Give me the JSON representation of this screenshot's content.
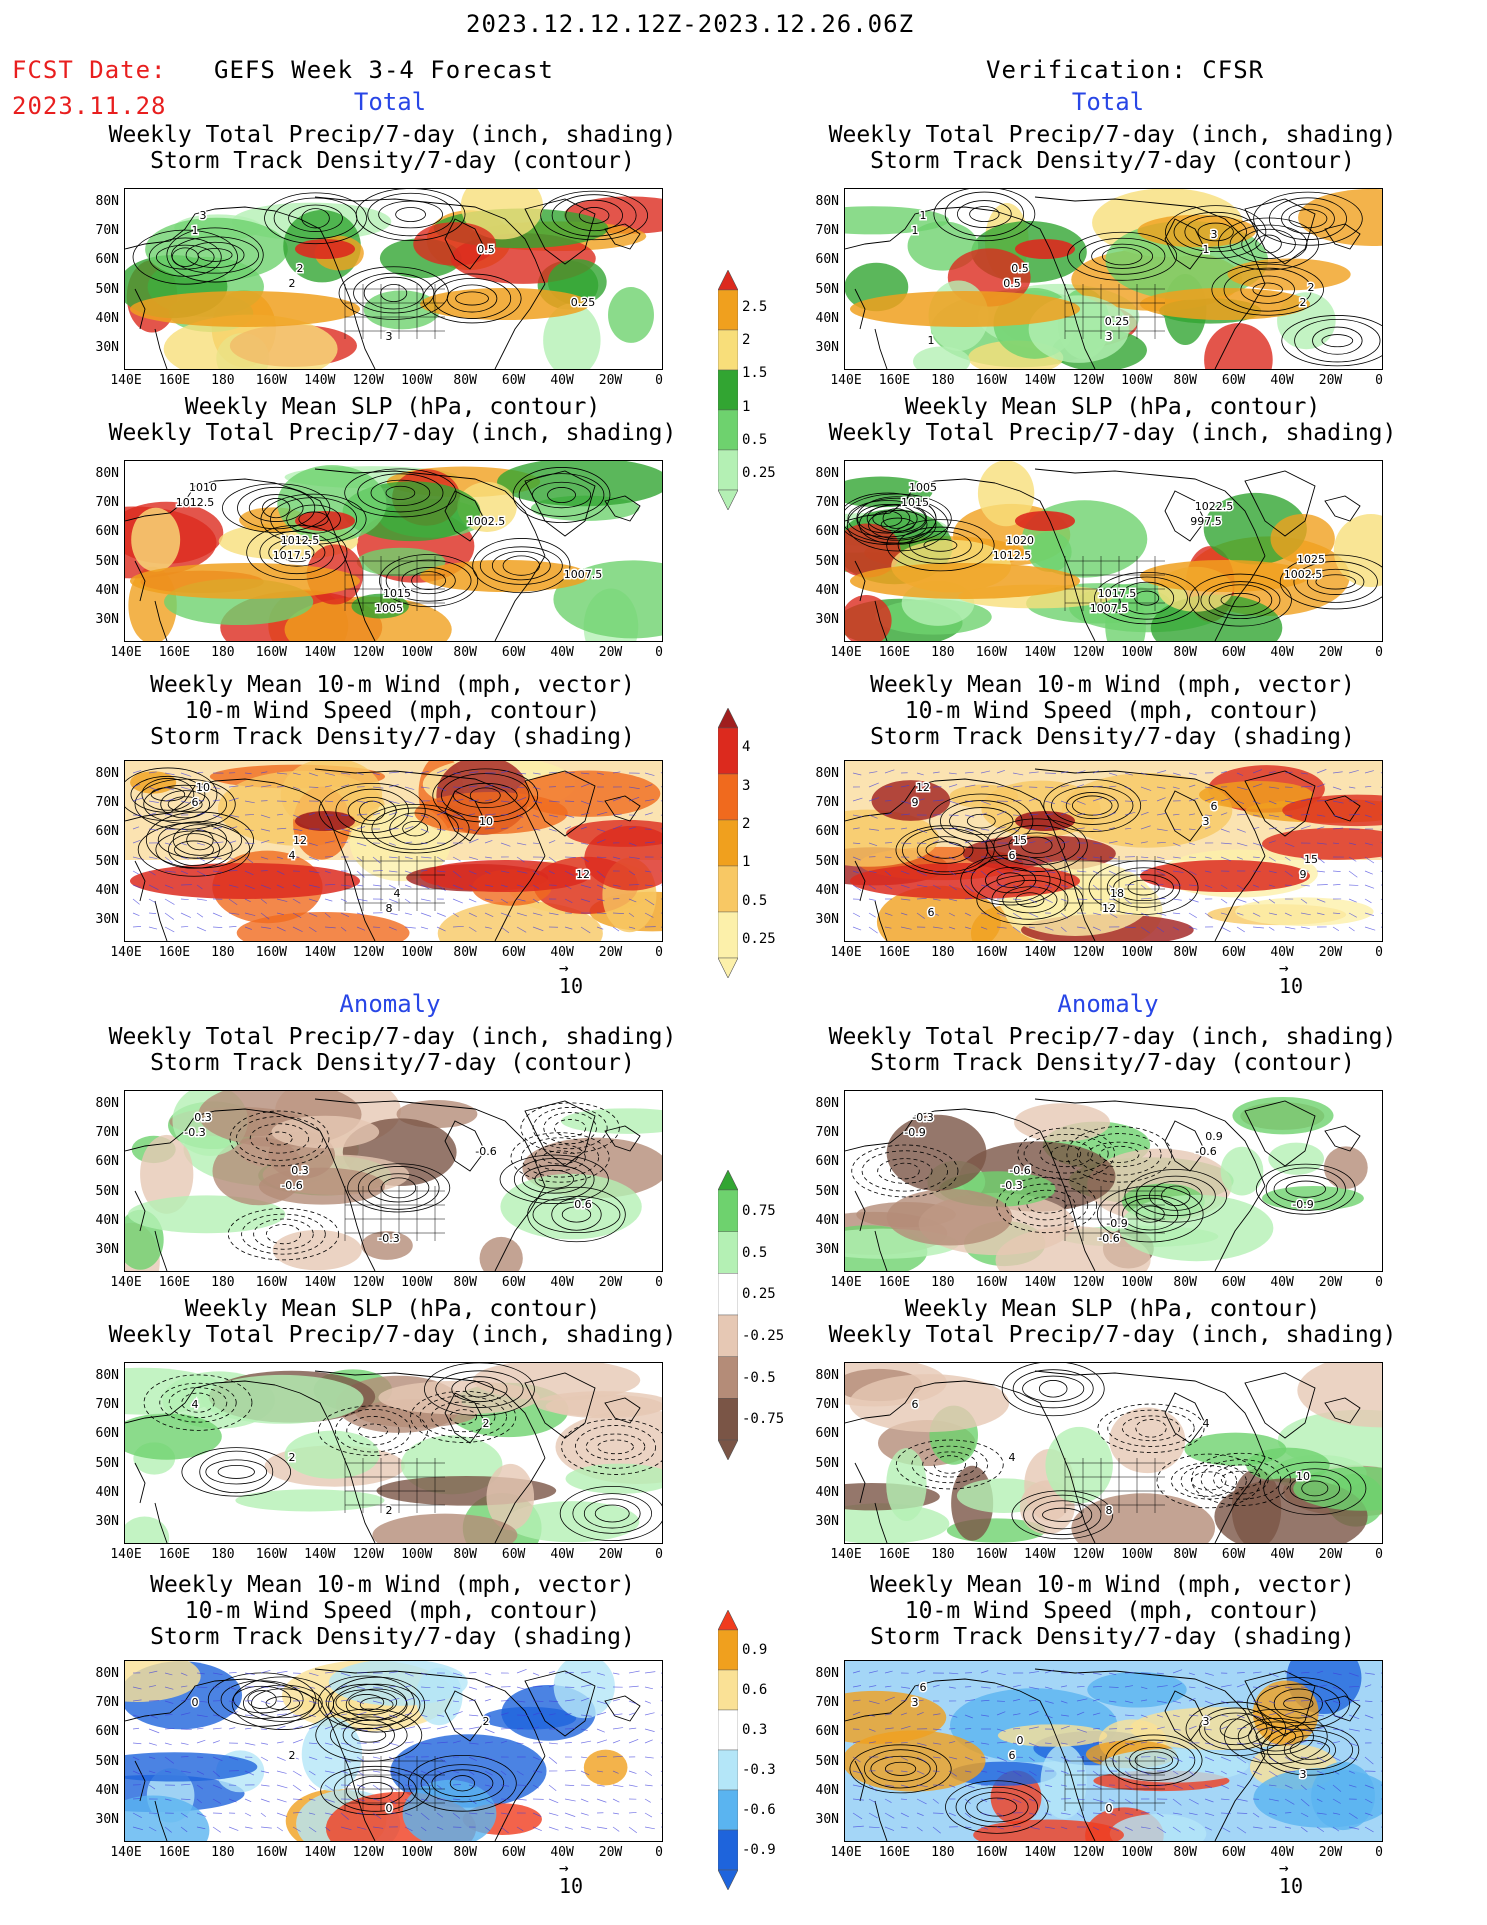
{
  "header": {
    "period": "2023.12.12.12Z-2023.12.26.06Z",
    "fcst_label": "FCST Date:",
    "fcst_date": "2023.11.28",
    "left_title": "GEFS Week 3-4 Forecast",
    "right_title": "Verification: CFSR"
  },
  "sections": {
    "total": "Total",
    "anomaly": "Anomaly"
  },
  "titles": {
    "precip_storm": [
      "Weekly Total Precip/7-day (inch, shading)",
      "Storm Track Density/7-day (contour)"
    ],
    "slp_precip": [
      "Weekly Mean SLP (hPa, contour)",
      "Weekly Total Precip/7-day (inch, shading)"
    ],
    "wind_storm": [
      "Weekly Mean 10-m Wind (mph, vector)",
      "10-m Wind Speed (mph, contour)",
      "Storm Track Density/7-day (shading)"
    ]
  },
  "axes": {
    "lat_labels": [
      "80N",
      "70N",
      "60N",
      "50N",
      "40N",
      "30N"
    ],
    "lon_labels": [
      "140E",
      "160E",
      "180",
      "160W",
      "140W",
      "120W",
      "100W",
      "80W",
      "60W",
      "40W",
      "20W",
      "0"
    ]
  },
  "vector_ref": "10",
  "colorbars": {
    "precip_total": {
      "labels": [
        "2.5",
        "2",
        "1.5",
        "1",
        "0.5",
        "0.25"
      ],
      "colors": [
        "#dc2a1e",
        "#f0a01e",
        "#f8de7a",
        "#32a532",
        "#6ed26e",
        "#b4f0b4"
      ]
    },
    "storm_total": {
      "labels": [
        "4",
        "3",
        "2",
        "1",
        "0.5",
        "0.25"
      ],
      "colors": [
        "#a01e1e",
        "#dc2a1e",
        "#f06a1e",
        "#f0a01e",
        "#f8c864",
        "#fcf0aa"
      ]
    },
    "precip_anom": {
      "labels": [
        "0.75",
        "0.5",
        "0.25",
        "-0.25",
        "-0.5",
        "-0.75"
      ],
      "colors": [
        "#32a532",
        "#6ed26e",
        "#b4f0b4",
        "#ffffff",
        "#e6c8b4",
        "#b48c78",
        "#7a5546"
      ]
    },
    "storm_anom": {
      "labels": [
        "0.9",
        "0.6",
        "0.3",
        "-0.3",
        "-0.6",
        "-0.9"
      ],
      "colors": [
        "#f03c1e",
        "#f0a01e",
        "#fae196",
        "#ffffff",
        "#b4e6f8",
        "#5ab4f0",
        "#1e64dc"
      ]
    }
  },
  "contour_labels": {
    "r1l": [
      "1",
      "2",
      "3",
      "0.5",
      "0.25",
      "3",
      "2"
    ],
    "r1r": [
      "1",
      "0.5",
      "3",
      "1",
      "2",
      "1",
      "0.5",
      "0.25",
      "3",
      "2",
      "1"
    ],
    "r2l": [
      "1012.5",
      "1017.5",
      "1005",
      "1002.5",
      "1007.5",
      "1010",
      "1012.5",
      "1015"
    ],
    "r2r": [
      "1015",
      "1012.5",
      "1007.5",
      "997.5",
      "1002.5",
      "1005",
      "1020",
      "1017.5",
      "1022.5",
      "1025"
    ],
    "r3l": [
      "6",
      "4",
      "8",
      "10",
      "12",
      "10",
      "12",
      "4"
    ],
    "r3r": [
      "9",
      "6",
      "12",
      "3",
      "9",
      "12",
      "15",
      "18",
      "6",
      "15",
      "6"
    ],
    "r4l": [
      "-0.3",
      "-0.6",
      "-0.3",
      "-0.6",
      "0.6",
      "0.3",
      "0.3"
    ],
    "r4r": [
      "-0.9",
      "-0.3",
      "-0.6",
      "-0.6",
      "-0.9",
      "-0.3",
      "-0.6",
      "-0.9",
      "0.9"
    ],
    "r5l": [
      "4",
      "2",
      "2",
      "2"
    ],
    "r5r": [
      "6",
      "4",
      "8",
      "4",
      "10"
    ],
    "r6l": [
      "0",
      "2",
      "0",
      "2"
    ],
    "r6r": [
      "3",
      "6",
      "0",
      "3",
      "3",
      "6",
      "0"
    ]
  }
}
